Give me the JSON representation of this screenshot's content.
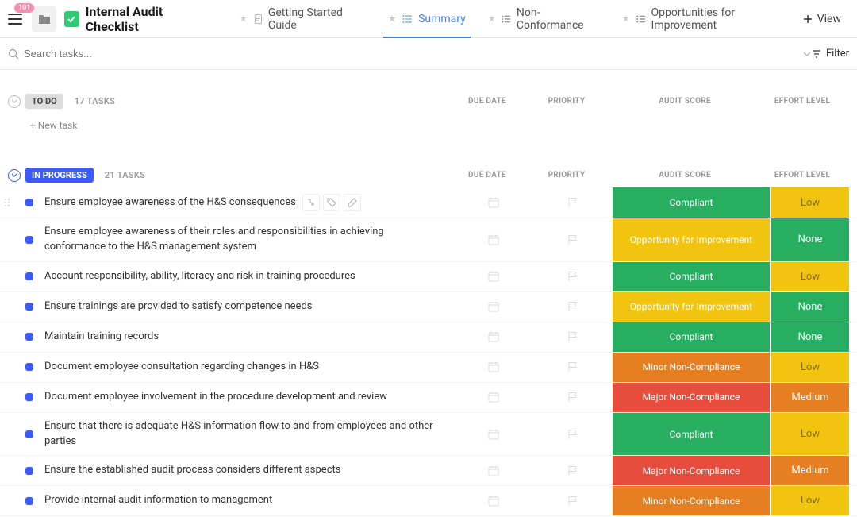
{
  "notif_count": "101",
  "page_title": "Internal Audit Checklist",
  "tabs": [
    {
      "label": "Getting Started Guide",
      "icon": "doc"
    },
    {
      "label": "Summary",
      "icon": "list",
      "active": true
    },
    {
      "label": "Non-Conformance",
      "icon": "list"
    },
    {
      "label": "Opportunities for Improvement",
      "icon": "list"
    }
  ],
  "view_label": "View",
  "search_placeholder": "Search tasks...",
  "filter_label": "Filter",
  "columns": {
    "due": "DUE DATE",
    "priority": "PRIORITY",
    "score": "AUDIT SCORE",
    "effort": "EFFORT LEVEL"
  },
  "sections": [
    {
      "name": "TO DO",
      "chip_class": "todo",
      "count": "17 TASKS",
      "collapse_class": "",
      "new_task_label": "+ New task",
      "rows": []
    },
    {
      "name": "IN PROGRESS",
      "chip_class": "inprogress",
      "count": "21 TASKS",
      "collapse_class": "blue",
      "rows": [
        {
          "title": "Ensure employee awareness of the H&S consequences",
          "score": "Compliant",
          "effort": "Low",
          "show_actions": true
        },
        {
          "title": "Ensure employee awareness of their roles and responsibilities in achieving conformance to the H&S management system",
          "score": "Opportunity for Improvement",
          "effort": "None"
        },
        {
          "title": "Account responsibility, ability, literacy and risk in training procedures",
          "score": "Compliant",
          "effort": "Low"
        },
        {
          "title": "Ensure trainings are provided to satisfy competence needs",
          "score": "Opportunity for Improvement",
          "effort": "None"
        },
        {
          "title": "Maintain training records",
          "score": "Compliant",
          "effort": "None"
        },
        {
          "title": "Document employee consultation regarding changes in H&S",
          "score": "Minor Non-Compliance",
          "effort": "Low"
        },
        {
          "title": "Document employee involvement in the procedure development and review",
          "score": "Major Non-Compliance",
          "effort": "Medium"
        },
        {
          "title": "Ensure that there is adequate H&S information flow to and from employees and other parties",
          "score": "Compliant",
          "effort": "Low"
        },
        {
          "title": "Ensure the established audit process considers different aspects",
          "score": "Major Non-Compliance",
          "effort": "Medium"
        },
        {
          "title": "Provide internal audit information to management",
          "score": "Minor Non-Compliance",
          "effort": "Low"
        }
      ]
    }
  ],
  "score_colors": {
    "Compliant": "#27ae60",
    "Opportunity for Improvement": "#f1c40f",
    "Minor Non-Compliance": "#e67e22",
    "Major Non-Compliance": "#e74c3c"
  },
  "effort_colors": {
    "None": {
      "bg": "#27ae60",
      "fg": "#ffffff"
    },
    "Low": {
      "bg": "#f1c40f",
      "fg": "#8a6d00"
    },
    "Medium": {
      "bg": "#e67e22",
      "fg": "#ffffff"
    }
  }
}
